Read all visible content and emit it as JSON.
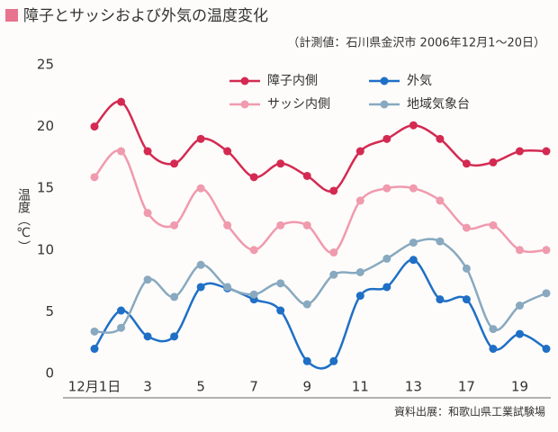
{
  "chart_data": {
    "type": "line",
    "title": "障子とサッシおよび外気の温度変化",
    "subtitle": "（計測値：石川県金沢市 2006年12月1〜20日）",
    "source": "資料出展：和歌山県工業試験場",
    "y_label": "温度（℃）",
    "categories": [
      "12月1日",
      null,
      "3",
      null,
      "5",
      null,
      "7",
      null,
      "9",
      null,
      "11",
      null,
      "13",
      null,
      "17",
      null,
      "19",
      null
    ],
    "series": [
      {
        "name": "障子内側",
        "color": "#d42a52",
        "values": [
          20,
          22,
          18,
          17,
          19,
          18,
          15.9,
          17,
          16,
          14.8,
          18,
          19,
          20.1,
          19,
          17,
          17.1,
          18,
          18
        ]
      },
      {
        "name": "外気",
        "color": "#1f6fc6",
        "values": [
          2,
          5.1,
          3,
          3,
          7,
          6.9,
          6,
          5.1,
          1,
          1,
          6.3,
          7,
          9.2,
          6,
          6,
          2,
          3.2,
          2
        ]
      },
      {
        "name": "サッシ内側",
        "color": "#f09aae",
        "values": [
          15.9,
          18,
          13,
          12,
          15,
          12,
          10,
          12,
          12,
          9.8,
          14,
          15,
          15,
          14,
          11.8,
          12,
          10,
          10
        ]
      },
      {
        "name": "地域気象台",
        "color": "#88a9c0",
        "values": [
          3.4,
          3.7,
          7.6,
          6.2,
          8.8,
          7,
          6.4,
          7.3,
          5.6,
          8,
          8.2,
          9.3,
          10.6,
          10.7,
          8.5,
          3.6,
          5.5,
          6.5
        ]
      }
    ],
    "ylim": [
      0,
      25
    ],
    "yticks": [
      0,
      5,
      10,
      15,
      20,
      25
    ],
    "grid": false,
    "legend": "top"
  }
}
